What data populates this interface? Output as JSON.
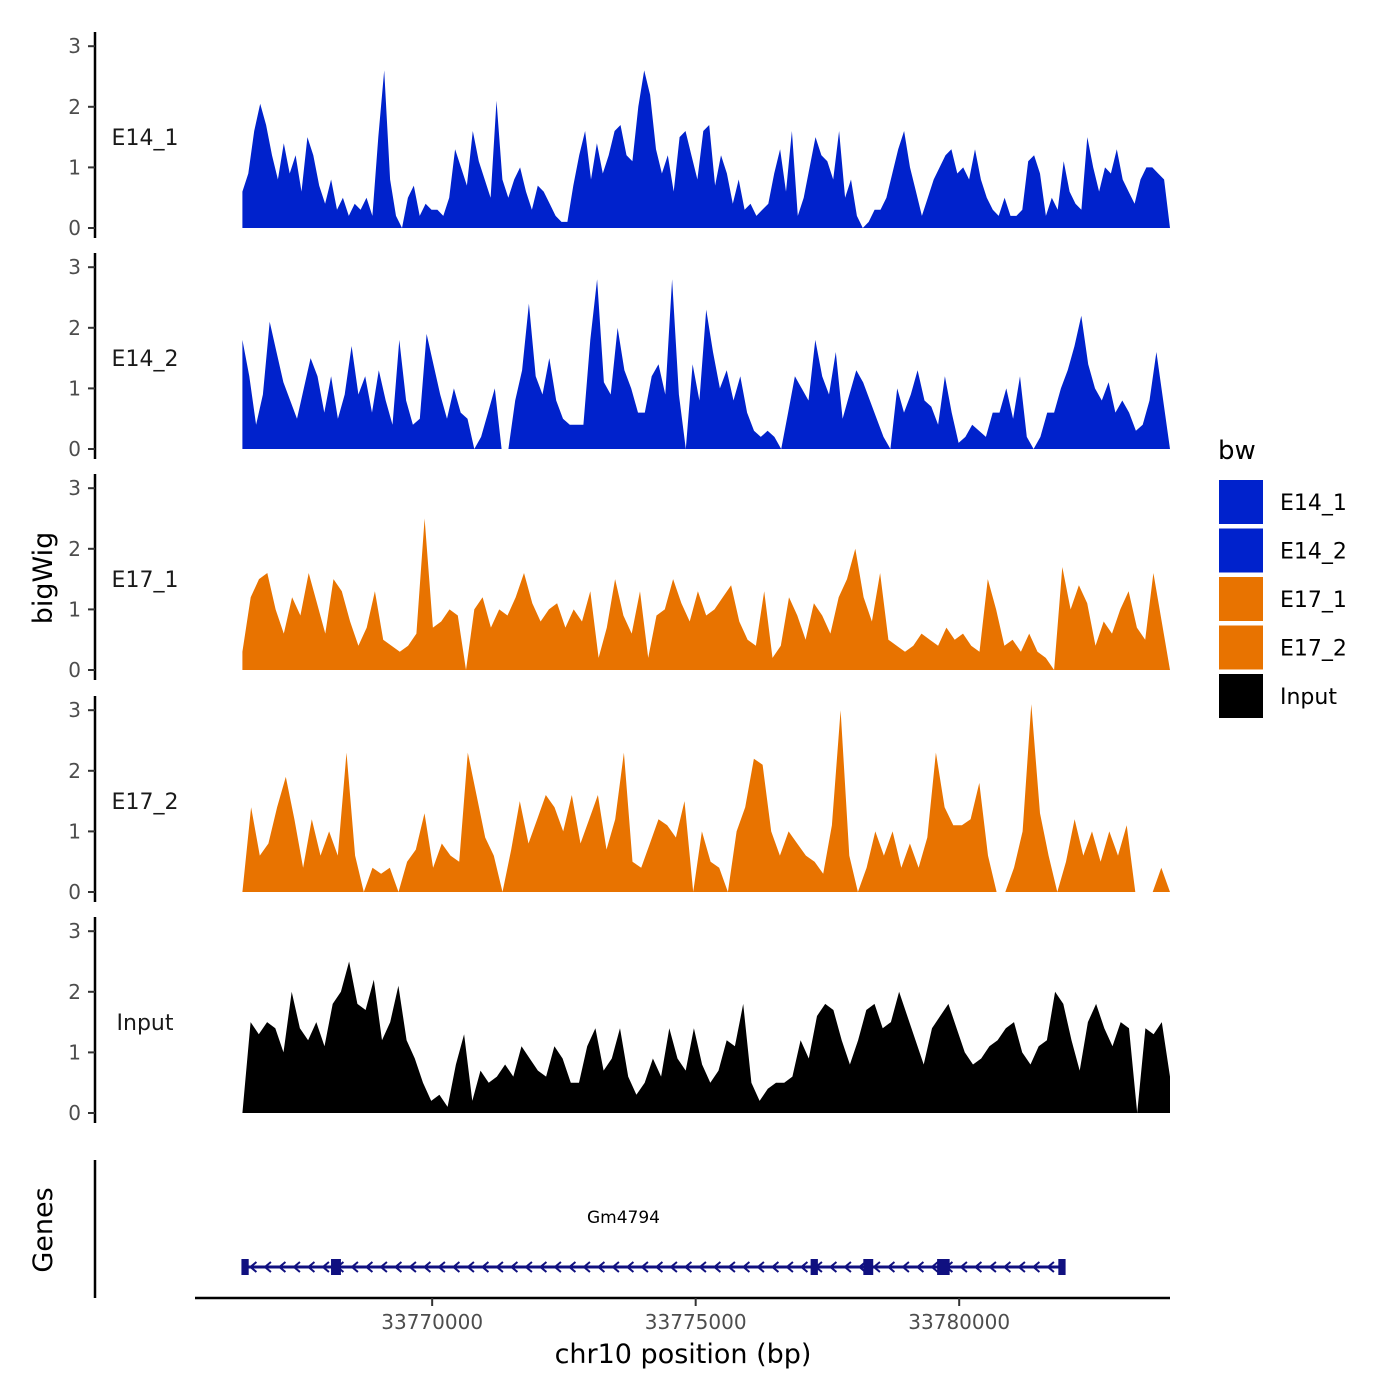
{
  "chart_data": {
    "type": "area",
    "ylabel": "bigWig",
    "xlabel": "chr10 position (bp)",
    "x_range": [
      33765500,
      33784000
    ],
    "ylim": [
      0,
      3.2
    ],
    "y_ticks": [
      "0",
      "1",
      "2",
      "3"
    ],
    "x_ticks": [
      {
        "value": 33770000,
        "label": "33770000"
      },
      {
        "value": 33775000,
        "label": "33775000"
      },
      {
        "value": 33780000,
        "label": "33780000"
      }
    ],
    "legend": {
      "title": "bw",
      "position": "right",
      "entries": [
        {
          "name": "E14_1",
          "color": "#0022CC"
        },
        {
          "name": "E14_2",
          "color": "#0022CC"
        },
        {
          "name": "E17_1",
          "color": "#E87300"
        },
        {
          "name": "E17_2",
          "color": "#E87300"
        },
        {
          "name": "Input",
          "color": "#000000"
        }
      ]
    },
    "series": [
      {
        "name": "E14_1",
        "color": "#0022CC",
        "x_start": 33766400,
        "x_end": 33784000,
        "values": [
          0.6,
          0.9,
          1.6,
          2.05,
          1.7,
          1.2,
          0.8,
          1.4,
          0.9,
          1.2,
          0.6,
          1.5,
          1.2,
          0.7,
          0.4,
          0.8,
          0.3,
          0.5,
          0.2,
          0.4,
          0.3,
          0.5,
          0.2,
          1.5,
          2.6,
          0.8,
          0.2,
          0.0,
          0.5,
          0.7,
          0.2,
          0.4,
          0.3,
          0.3,
          0.2,
          0.5,
          1.3,
          1.0,
          0.7,
          1.6,
          1.1,
          0.8,
          0.5,
          2.1,
          0.8,
          0.5,
          0.8,
          1.0,
          0.6,
          0.3,
          0.7,
          0.6,
          0.4,
          0.2,
          0.1,
          0.1,
          0.7,
          1.2,
          1.6,
          0.8,
          1.4,
          0.9,
          1.2,
          1.6,
          1.7,
          1.2,
          1.1,
          2.0,
          2.6,
          2.2,
          1.3,
          0.9,
          1.2,
          0.6,
          1.5,
          1.6,
          1.2,
          0.8,
          1.6,
          1.7,
          0.7,
          1.2,
          0.9,
          0.4,
          0.8,
          0.3,
          0.4,
          0.2,
          0.3,
          0.4,
          0.9,
          1.3,
          0.6,
          1.6,
          0.2,
          0.5,
          1.0,
          1.5,
          1.2,
          1.1,
          0.8,
          1.6,
          0.5,
          0.8,
          0.2,
          0.0,
          0.1,
          0.3,
          0.3,
          0.5,
          0.9,
          1.3,
          1.6,
          1.0,
          0.6,
          0.2,
          0.5,
          0.8,
          1.0,
          1.2,
          1.3,
          0.9,
          1.0,
          0.8,
          1.3,
          0.8,
          0.5,
          0.3,
          0.2,
          0.5,
          0.2,
          0.2,
          0.3,
          1.1,
          1.2,
          0.9,
          0.2,
          0.5,
          0.3,
          1.1,
          0.6,
          0.4,
          0.3,
          1.5,
          1.0,
          0.6,
          1.0,
          0.9,
          1.3,
          0.8,
          0.6,
          0.4,
          0.8,
          1.0,
          1.0,
          0.9,
          0.8,
          0.0
        ]
      },
      {
        "name": "E14_2",
        "color": "#0022CC",
        "x_start": 33766400,
        "x_end": 33784000,
        "values": [
          1.8,
          1.2,
          0.4,
          0.9,
          2.1,
          1.6,
          1.1,
          0.8,
          0.5,
          1.0,
          1.5,
          1.2,
          0.6,
          1.2,
          0.5,
          0.9,
          1.7,
          0.9,
          1.2,
          0.6,
          1.3,
          0.8,
          0.4,
          1.8,
          0.8,
          0.4,
          0.5,
          1.9,
          1.4,
          0.9,
          0.5,
          1.0,
          0.6,
          0.5,
          0.0,
          0.2,
          0.6,
          1.0,
          0.0,
          0.0,
          0.8,
          1.3,
          2.4,
          1.2,
          0.9,
          1.5,
          0.8,
          0.5,
          0.4,
          0.4,
          0.4,
          1.8,
          2.8,
          1.1,
          0.9,
          2.0,
          1.3,
          1.0,
          0.6,
          0.6,
          1.2,
          1.4,
          0.9,
          2.8,
          0.9,
          0.0,
          1.4,
          0.8,
          2.3,
          1.6,
          1.0,
          1.3,
          0.8,
          1.2,
          0.6,
          0.3,
          0.2,
          0.3,
          0.2,
          0.0,
          0.6,
          1.2,
          1.0,
          0.8,
          1.8,
          1.2,
          0.9,
          1.6,
          0.5,
          0.9,
          1.3,
          1.1,
          0.8,
          0.5,
          0.2,
          0.0,
          1.0,
          0.6,
          0.9,
          1.3,
          0.8,
          0.7,
          0.4,
          1.2,
          0.6,
          0.1,
          0.2,
          0.4,
          0.3,
          0.2,
          0.6,
          0.6,
          1.0,
          0.5,
          1.2,
          0.2,
          0.0,
          0.2,
          0.6,
          0.6,
          1.0,
          1.3,
          1.7,
          2.2,
          1.4,
          1.0,
          0.8,
          1.1,
          0.6,
          0.8,
          0.6,
          0.3,
          0.4,
          0.8,
          1.6,
          0.8,
          0.0
        ]
      },
      {
        "name": "E17_1",
        "color": "#E87300",
        "x_start": 33766400,
        "x_end": 33784000,
        "values": [
          0.3,
          1.2,
          1.5,
          1.6,
          1.0,
          0.6,
          1.2,
          0.9,
          1.6,
          1.1,
          0.6,
          1.5,
          1.3,
          0.8,
          0.4,
          0.7,
          1.3,
          0.5,
          0.4,
          0.3,
          0.4,
          0.6,
          2.5,
          0.7,
          0.8,
          1.0,
          0.9,
          0.0,
          1.0,
          1.2,
          0.7,
          1.0,
          0.9,
          1.2,
          1.6,
          1.1,
          0.8,
          1.0,
          1.1,
          0.7,
          1.0,
          0.8,
          1.3,
          0.2,
          0.7,
          1.5,
          0.9,
          0.6,
          1.3,
          0.2,
          0.9,
          1.0,
          1.5,
          1.1,
          0.8,
          1.3,
          0.9,
          1.0,
          1.2,
          1.4,
          0.8,
          0.5,
          0.4,
          1.3,
          0.2,
          0.4,
          1.2,
          0.9,
          0.5,
          1.1,
          0.9,
          0.6,
          1.2,
          1.5,
          2.0,
          1.2,
          0.8,
          1.6,
          0.5,
          0.4,
          0.3,
          0.4,
          0.6,
          0.5,
          0.4,
          0.7,
          0.5,
          0.6,
          0.4,
          0.3,
          1.5,
          1.0,
          0.4,
          0.5,
          0.3,
          0.6,
          0.3,
          0.2,
          0.0,
          1.7,
          1.0,
          1.4,
          1.1,
          0.4,
          0.8,
          0.6,
          1.0,
          1.3,
          0.7,
          0.5,
          1.6,
          0.8,
          0.0
        ]
      },
      {
        "name": "E17_2",
        "color": "#E87300",
        "x_start": 33766400,
        "x_end": 33784000,
        "values": [
          0.0,
          1.4,
          0.6,
          0.8,
          1.4,
          1.9,
          1.2,
          0.4,
          1.2,
          0.6,
          1.0,
          0.6,
          2.3,
          0.6,
          0.0,
          0.4,
          0.3,
          0.4,
          0.0,
          0.5,
          0.7,
          1.3,
          0.4,
          0.8,
          0.6,
          0.5,
          2.3,
          1.6,
          0.9,
          0.6,
          0.0,
          0.7,
          1.5,
          0.8,
          1.2,
          1.6,
          1.4,
          1.0,
          1.6,
          0.8,
          1.2,
          1.6,
          0.7,
          1.2,
          2.3,
          0.5,
          0.4,
          0.8,
          1.2,
          1.1,
          0.9,
          1.5,
          0.0,
          1.0,
          0.5,
          0.4,
          0.0,
          1.0,
          1.4,
          2.2,
          2.1,
          1.0,
          0.6,
          1.0,
          0.8,
          0.6,
          0.5,
          0.3,
          1.1,
          3.0,
          0.6,
          0.0,
          0.4,
          1.0,
          0.6,
          1.0,
          0.4,
          0.8,
          0.4,
          0.9,
          2.3,
          1.4,
          1.1,
          1.1,
          1.2,
          1.8,
          0.6,
          0.0,
          0.0,
          0.4,
          1.0,
          3.1,
          1.3,
          0.6,
          0.0,
          0.5,
          1.2,
          0.6,
          1.0,
          0.5,
          1.0,
          0.6,
          1.1,
          0.0,
          0.0,
          0.0,
          0.4,
          0.0
        ]
      },
      {
        "name": "Input",
        "color": "#000000",
        "x_start": 33766400,
        "x_end": 33784000,
        "values": [
          0.0,
          1.5,
          1.3,
          1.5,
          1.4,
          1.0,
          2.0,
          1.4,
          1.2,
          1.5,
          1.1,
          1.8,
          2.0,
          2.5,
          1.8,
          1.7,
          2.2,
          1.2,
          1.5,
          2.1,
          1.2,
          0.9,
          0.5,
          0.2,
          0.3,
          0.1,
          0.8,
          1.3,
          0.2,
          0.7,
          0.5,
          0.6,
          0.8,
          0.6,
          1.1,
          0.9,
          0.7,
          0.6,
          1.1,
          0.9,
          0.5,
          0.5,
          1.1,
          1.4,
          0.7,
          0.9,
          1.4,
          0.6,
          0.3,
          0.5,
          0.9,
          0.6,
          1.4,
          0.9,
          0.7,
          1.4,
          0.8,
          0.5,
          0.7,
          1.2,
          1.1,
          1.8,
          0.5,
          0.2,
          0.4,
          0.5,
          0.5,
          0.6,
          1.2,
          0.9,
          1.6,
          1.8,
          1.7,
          1.2,
          0.8,
          1.2,
          1.7,
          1.8,
          1.4,
          1.5,
          2.0,
          1.6,
          1.2,
          0.8,
          1.4,
          1.6,
          1.8,
          1.4,
          1.0,
          0.8,
          0.9,
          1.1,
          1.2,
          1.4,
          1.5,
          1.0,
          0.8,
          1.1,
          1.2,
          2.0,
          1.8,
          1.2,
          0.7,
          1.5,
          1.8,
          1.4,
          1.1,
          1.5,
          1.4,
          0.0,
          1.4,
          1.3,
          1.5,
          0.6
        ]
      }
    ],
    "gene_track": {
      "label": "Genes",
      "genes": [
        {
          "name": "Gm4794",
          "start": 33766400,
          "end": 33782000,
          "strand": "-",
          "exons": [
            [
              33766400,
              33766500
            ],
            [
              33768100,
              33768250
            ],
            [
              33777200,
              33777300
            ],
            [
              33778200,
              33778350
            ],
            [
              33779600,
              33779800
            ],
            [
              33781900,
              33782000
            ]
          ]
        }
      ]
    }
  }
}
